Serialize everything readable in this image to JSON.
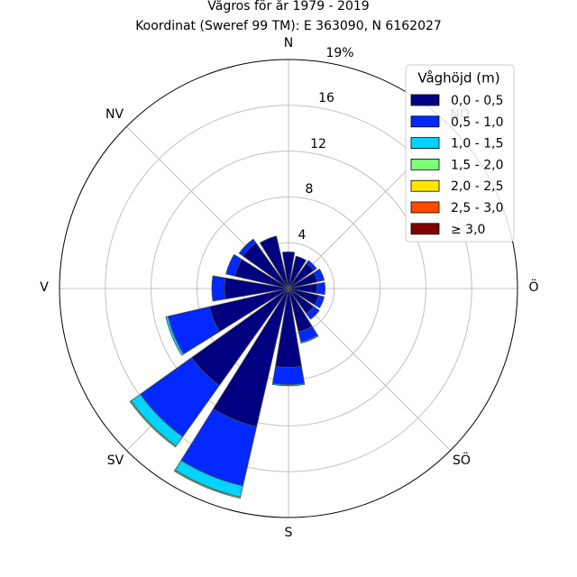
{
  "chart_data": {
    "type": "windrose",
    "title": "Vågros för år 1979 - 2019",
    "subtitle": "Koordinat (Sweref 99 TM): E 363090, N 6162027",
    "directions": [
      "N",
      "NÖ",
      "Ö",
      "SÖ",
      "S",
      "SV",
      "V",
      "NV"
    ],
    "radial_ticks": [
      4,
      8,
      12,
      16
    ],
    "radial_max_label": "19%",
    "rmax": 20,
    "grid": true,
    "legend": {
      "title": "Våghöjd (m)",
      "placement": "top-right",
      "labels": [
        "0,0 - 0,5",
        "0,5 - 1,0",
        "1,0 - 1,5",
        "1,5 - 2,0",
        "2,0 - 2,5",
        "2,5 - 3,0",
        "≥ 3,0"
      ],
      "colors": [
        "#000080",
        "#0028ff",
        "#00d4ff",
        "#7cff79",
        "#ffe600",
        "#ff4a00",
        "#800000"
      ]
    },
    "sectors": [
      {
        "direction_deg": 0,
        "values": [
          3.2,
          0.0,
          0.0,
          0.0,
          0.0,
          0.0,
          0.0
        ]
      },
      {
        "direction_deg": 22.5,
        "values": [
          2.9,
          0.0,
          0.0,
          0.0,
          0.0,
          0.0,
          0.0
        ]
      },
      {
        "direction_deg": 45,
        "values": [
          2.7,
          0.3,
          0.0,
          0.0,
          0.0,
          0.0,
          0.0
        ]
      },
      {
        "direction_deg": 67.5,
        "values": [
          2.6,
          0.6,
          0.0,
          0.0,
          0.0,
          0.0,
          0.0
        ]
      },
      {
        "direction_deg": 90,
        "values": [
          2.5,
          0.7,
          0.0,
          0.0,
          0.0,
          0.0,
          0.0
        ]
      },
      {
        "direction_deg": 112.5,
        "values": [
          2.7,
          0.5,
          0.0,
          0.0,
          0.0,
          0.0,
          0.0
        ]
      },
      {
        "direction_deg": 135,
        "values": [
          2.7,
          0.6,
          0.0,
          0.0,
          0.0,
          0.0,
          0.0
        ]
      },
      {
        "direction_deg": 157.5,
        "values": [
          3.9,
          0.9,
          0.1,
          0.0,
          0.0,
          0.0,
          0.0
        ]
      },
      {
        "direction_deg": 180,
        "values": [
          6.9,
          1.5,
          0.1,
          0.0,
          0.0,
          0.0,
          0.0
        ]
      },
      {
        "direction_deg": 202.5,
        "values": [
          12.4,
          5.3,
          1.0,
          0.1,
          0.0,
          0.0,
          0.0
        ]
      },
      {
        "direction_deg": 225,
        "values": [
          10.4,
          5.5,
          1.0,
          0.1,
          0.0,
          0.0,
          0.0
        ]
      },
      {
        "direction_deg": 247.5,
        "values": [
          7.1,
          3.7,
          0.2,
          0.0,
          0.0,
          0.0,
          0.0
        ]
      },
      {
        "direction_deg": 270,
        "values": [
          5.6,
          1.1,
          0.0,
          0.0,
          0.0,
          0.0,
          0.0
        ]
      },
      {
        "direction_deg": 292.5,
        "values": [
          4.8,
          0.8,
          0.0,
          0.0,
          0.0,
          0.0,
          0.0
        ]
      },
      {
        "direction_deg": 315,
        "values": [
          4.9,
          0.4,
          0.0,
          0.0,
          0.0,
          0.0,
          0.0
        ]
      },
      {
        "direction_deg": 337.5,
        "values": [
          4.7,
          0.0,
          0.0,
          0.0,
          0.0,
          0.0,
          0.0
        ]
      }
    ]
  },
  "direction_labels": {
    "n": "N",
    "ne": "NÖ",
    "e": "Ö",
    "se": "SÖ",
    "s": "S",
    "sw": "SV",
    "w": "V",
    "nw": "NV"
  },
  "radial_labels": {
    "r4": "4",
    "r8": "8",
    "r12": "12",
    "r16": "16",
    "rmax": "19%"
  }
}
